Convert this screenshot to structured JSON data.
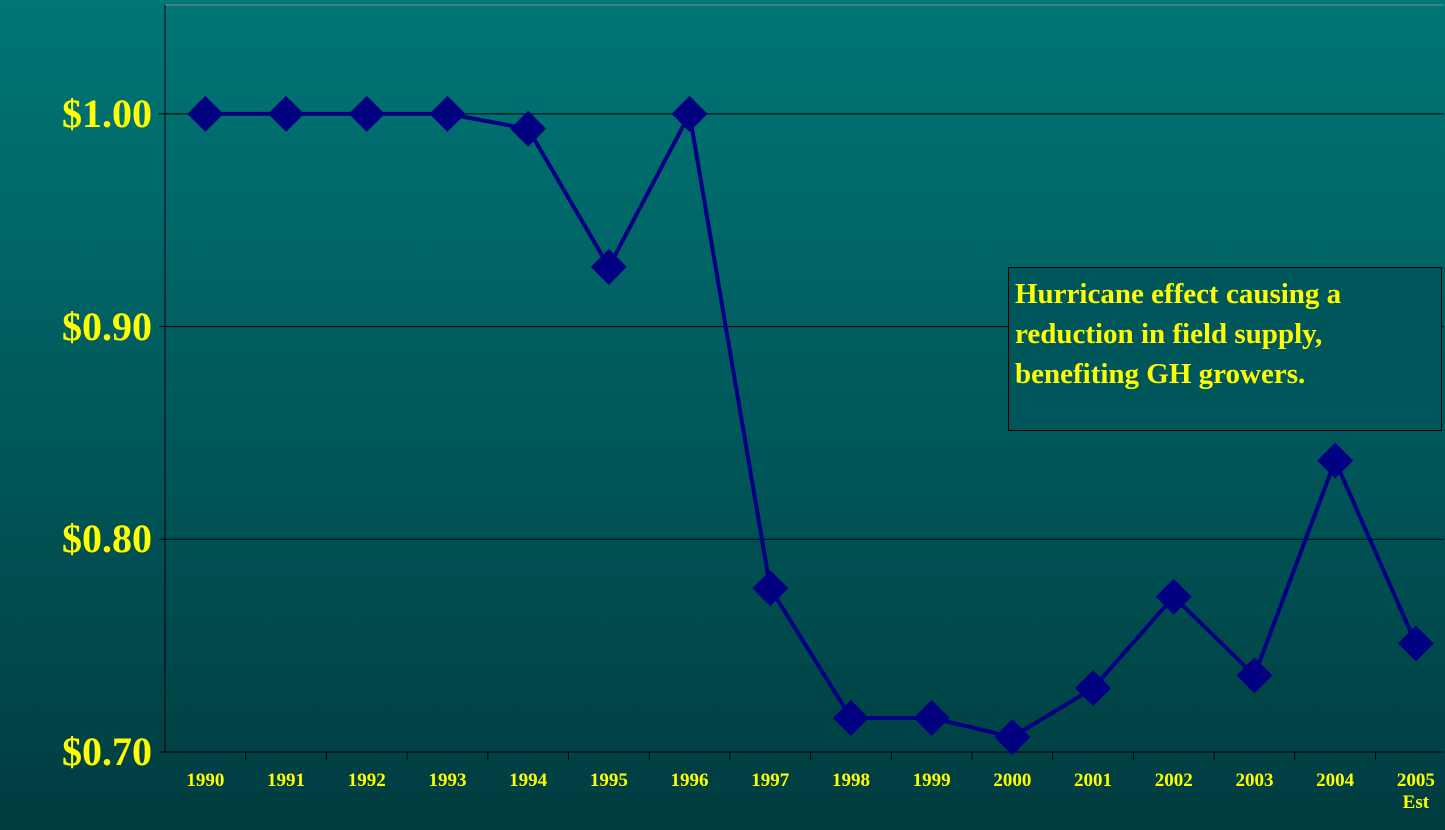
{
  "chart_data": {
    "type": "line",
    "categories": [
      "1990",
      "1991",
      "1992",
      "1993",
      "1994",
      "1995",
      "1996",
      "1997",
      "1998",
      "1999",
      "2000",
      "2001",
      "2002",
      "2003",
      "2004",
      "2005\nEst"
    ],
    "series": [
      {
        "color": "#000080",
        "values": [
          1.0,
          1.0,
          1.0,
          1.0,
          0.993,
          0.928,
          1.0,
          0.777,
          0.716,
          0.716,
          0.707,
          0.73,
          0.773,
          0.736,
          0.837,
          0.751
        ]
      }
    ],
    "ylim": [
      0.7,
      1.05
    ],
    "yticks": [
      {
        "value": 0.7,
        "label": "$0.70"
      },
      {
        "value": 0.8,
        "label": "$0.80"
      },
      {
        "value": 0.9,
        "label": "$0.90"
      },
      {
        "value": 1.0,
        "label": "$1.00"
      }
    ],
    "grid": true,
    "annotation": "Hurricane effect causing a reduction in field supply, benefiting GH growers."
  }
}
